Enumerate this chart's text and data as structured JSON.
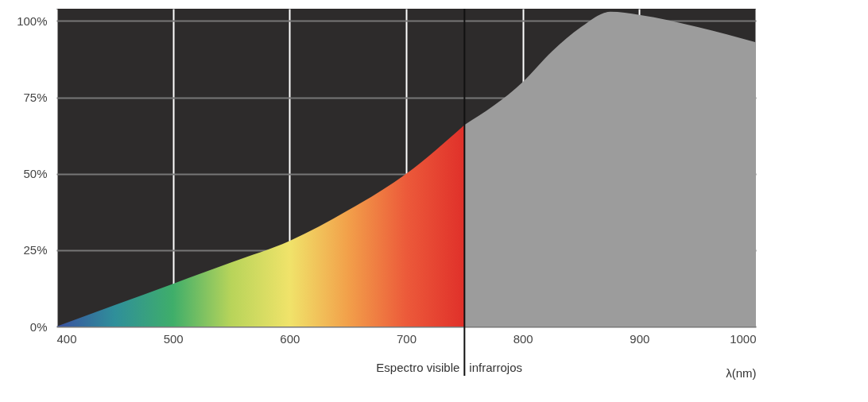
{
  "chart_data": {
    "type": "area",
    "xlabel": "λ(nm)",
    "series": [
      {
        "x": [
          400,
          450,
          500,
          550,
          600,
          650,
          700,
          750
        ],
        "values": [
          0,
          7,
          14,
          21,
          28,
          38,
          50,
          66
        ],
        "colors": [
          "#3a4fa0",
          "#2f8f9a",
          "#3fae6a",
          "#b8d45a",
          "#f0e36a",
          "#f2a04a",
          "#ec5a3a",
          "#e0302a"
        ]
      },
      {
        "x": [
          750,
          800,
          825,
          850,
          875,
          900,
          950,
          1000
        ],
        "values": [
          66,
          80,
          90,
          98,
          103,
          102,
          98,
          93
        ],
        "color": "#9c9c9c"
      }
    ],
    "xlim": [
      400,
      1000
    ],
    "ylim": [
      0,
      104
    ],
    "xticks": [
      400,
      500,
      600,
      700,
      800,
      900,
      1000
    ],
    "yticks": [
      {
        "value": 0,
        "label": "0%"
      },
      {
        "value": 25,
        "label": "25%"
      },
      {
        "value": 50,
        "label": "50%"
      },
      {
        "value": 75,
        "label": "75%"
      },
      {
        "value": 100,
        "label": "100%"
      }
    ],
    "grid": true,
    "ref_lines": [
      {
        "axis": "x",
        "value": 750,
        "color": "#111111"
      }
    ],
    "annotations": [
      "Espectro visible",
      "infrarrojos"
    ]
  }
}
